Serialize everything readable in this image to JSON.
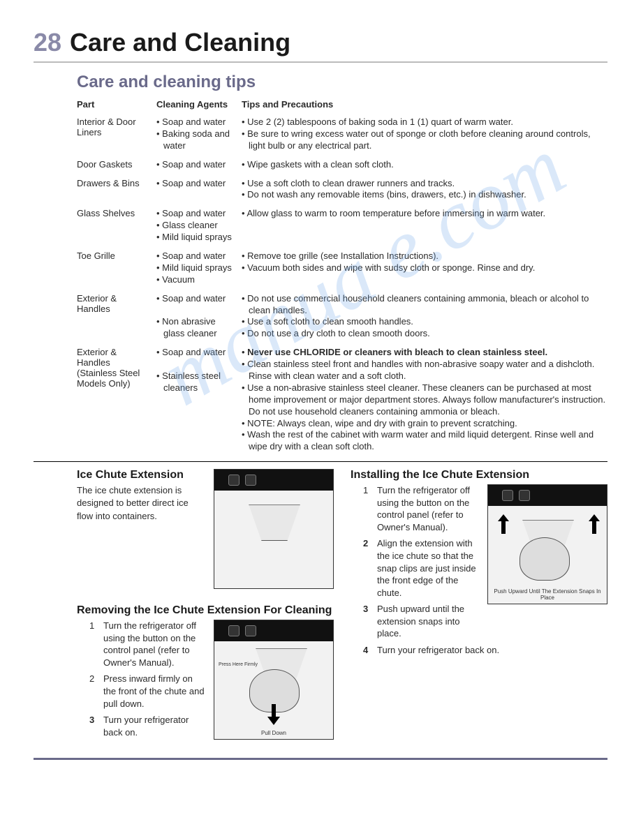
{
  "page": {
    "number": "28",
    "title": "Care and Cleaning"
  },
  "section_title": "Care and cleaning tips",
  "table_headers": {
    "part": "Part",
    "agents": "Cleaning Agents",
    "tips": "Tips and Precautions"
  },
  "cleaning_rows": [
    {
      "part": "Interior & Door Liners",
      "agents": [
        "Soap and water",
        "Baking soda and water"
      ],
      "tips": [
        "Use 2 (2) tablespoons of baking soda in 1 (1) quart of warm water.",
        "Be sure to wring excess water out of sponge or cloth before cleaning around controls, light bulb or any electrical part."
      ]
    },
    {
      "part": "Door Gaskets",
      "agents": [
        "Soap and water"
      ],
      "tips": [
        "Wipe gaskets with a clean soft cloth."
      ]
    },
    {
      "part": "Drawers & Bins",
      "agents": [
        "Soap and water"
      ],
      "tips": [
        "Use a soft cloth to clean drawer runners and tracks.",
        "Do not wash any removable items (bins, drawers, etc.) in dishwasher."
      ]
    },
    {
      "part": "Glass Shelves",
      "agents": [
        "Soap and water",
        "Glass cleaner",
        "Mild liquid sprays"
      ],
      "tips": [
        "Allow glass to warm to room temperature before immersing in warm water."
      ]
    },
    {
      "part": "Toe Grille",
      "agents": [
        "Soap and water",
        "Mild liquid sprays",
        "Vacuum"
      ],
      "tips": [
        "Remove toe grille (see Installation Instructions).",
        "Vacuum both sides and wipe with sudsy cloth or sponge. Rinse and dry."
      ]
    },
    {
      "part": "Exterior & Handles",
      "agents": [
        "Soap and water",
        "",
        "Non abrasive glass cleaner"
      ],
      "tips": [
        "Do not use commercial household cleaners containing ammonia, bleach or alcohol to clean handles.",
        "Use a soft cloth to clean smooth handles.",
        "Do not use a dry cloth to clean smooth doors."
      ]
    },
    {
      "part": "Exterior & Handles (Stainless Steel Models Only)",
      "agents": [
        "Soap and water",
        "",
        "Stainless steel cleaners"
      ],
      "tips_special": [
        {
          "bold": true,
          "text": "Never use CHLORIDE or cleaners with bleach to clean stainless steel."
        },
        {
          "bold": false,
          "text": "Clean stainless steel front and handles with non-abrasive soapy water and a dishcloth. Rinse with clean water and a soft cloth."
        },
        {
          "bold": false,
          "text": "Use a non-abrasive stainless steel cleaner. These cleaners can be purchased at most home improvement or major department stores. Always follow manufacturer's instruction. Do not use household cleaners containing ammonia or bleach."
        },
        {
          "bold": false,
          "text": "NOTE: Always clean, wipe and dry with grain to prevent scratching."
        },
        {
          "bold": false,
          "text": "Wash the rest of the cabinet with warm water and mild liquid detergent. Rinse well and wipe dry with a clean soft cloth."
        }
      ]
    }
  ],
  "ice_ext": {
    "title": "Ice Chute Extension",
    "body": "The ice chute extension is designed to better direct ice flow into containers."
  },
  "removing": {
    "title": "Removing the Ice Chute Extension For Cleaning",
    "steps": [
      {
        "n": "1",
        "bold": false,
        "text": "Turn the refrigerator off using the button on the control panel (refer to Owner's Manual)."
      },
      {
        "n": "2",
        "bold": false,
        "text": "Press inward firmly on the front of the chute and pull down."
      },
      {
        "n": "3",
        "bold": true,
        "text": "Turn your refrigerator back on."
      }
    ],
    "fig_labels": {
      "press": "Press Here Firmly",
      "pull": "Pull Down"
    }
  },
  "installing": {
    "title": "Installing the Ice Chute Extension",
    "steps": [
      {
        "n": "1",
        "bold": false,
        "text": "Turn the refrigerator off using the button on the control panel (refer to Owner's Manual)."
      },
      {
        "n": "2",
        "bold": true,
        "text": "Align the extension with the ice chute so that the snap clips are just inside the front edge of the chute."
      },
      {
        "n": "3",
        "bold": true,
        "text": "Push upward until the extension snaps into place."
      },
      {
        "n": "4",
        "bold": true,
        "text": "Turn your refrigerator back on."
      }
    ],
    "fig_caption": "Push Upward Until The Extension Snaps In Place"
  },
  "watermark_text": "manua   e.com",
  "colors": {
    "page_number": "#8a8aa8",
    "section_title": "#6a6a8a",
    "watermark": "#6fa8e8",
    "bottom_rule": "#6a6a8a"
  }
}
